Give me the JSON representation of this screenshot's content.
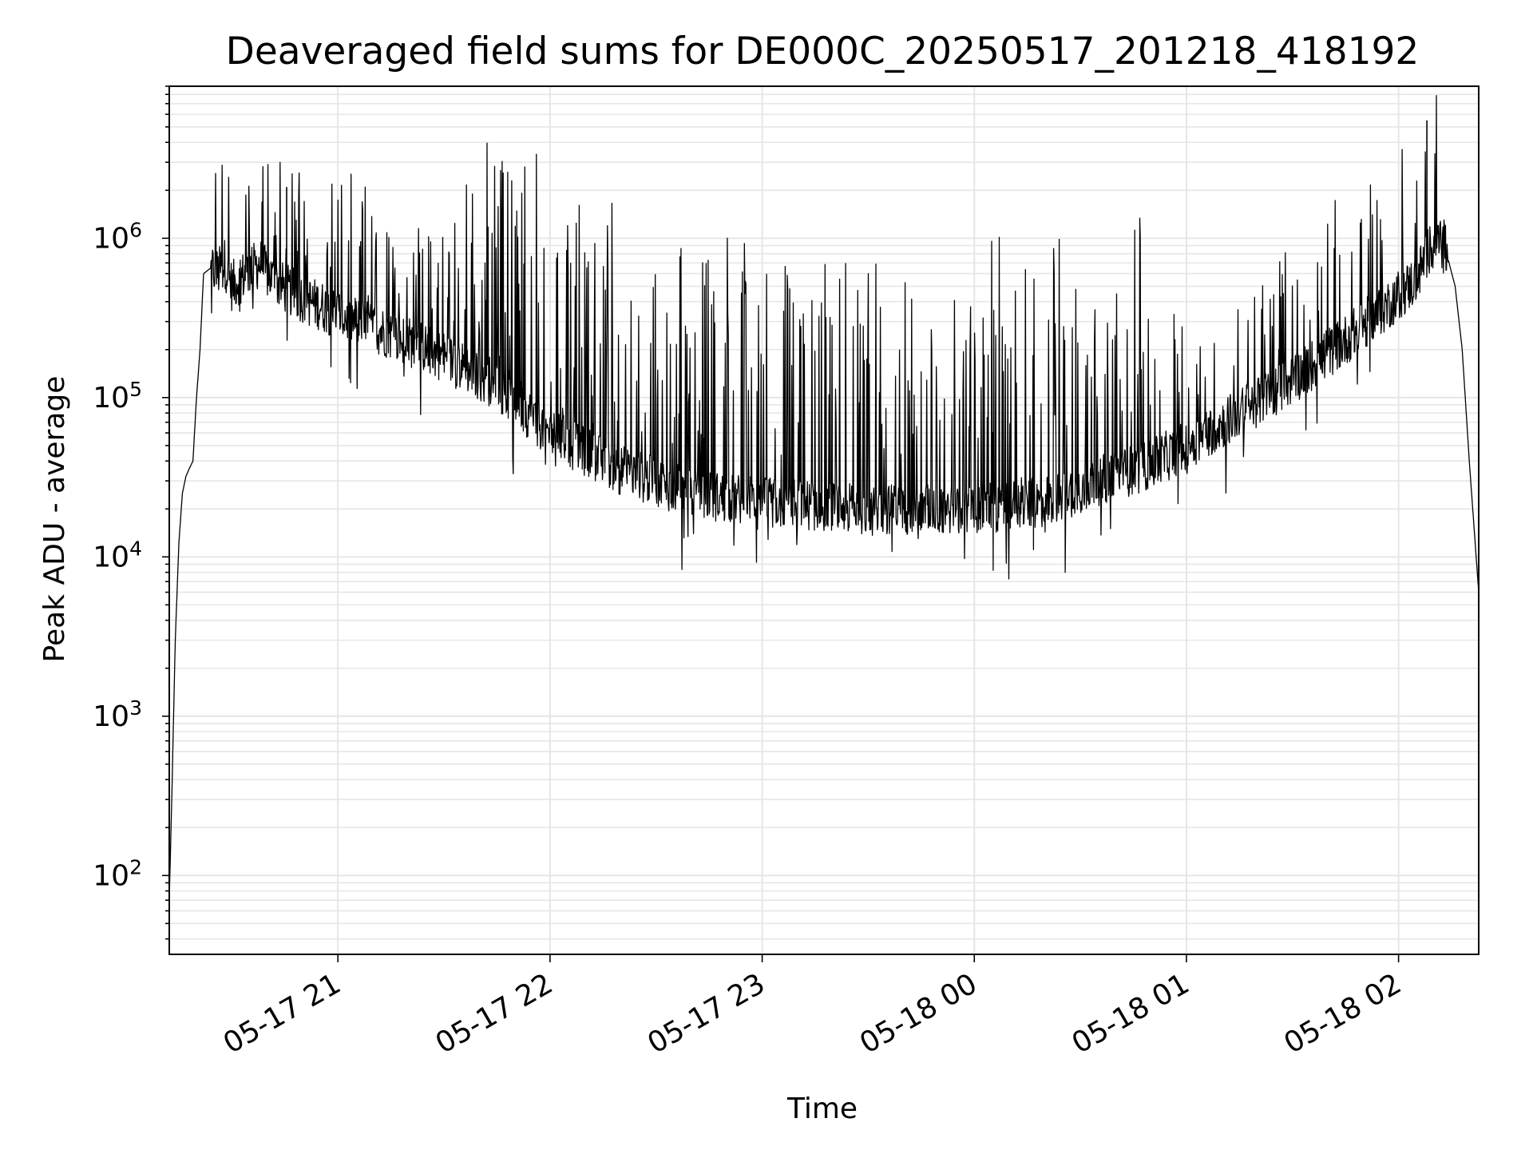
{
  "chart_data": {
    "type": "line",
    "title": "Deaveraged field sums for DE000C_20250517_201218_418192",
    "xlabel": "Time",
    "ylabel": "Peak ADU - average",
    "y_scale": "log",
    "ylim": [
      32,
      9000000
    ],
    "xlim": [
      "2025-05-17 20:12:18",
      "2025-05-18 02:22:40"
    ],
    "grid": true,
    "line_color": "#000000",
    "grid_color": "#e6e6e6",
    "x_ticks": [
      {
        "label": "05-17 21",
        "value": "2025-05-17 21:00:00"
      },
      {
        "label": "05-17 22",
        "value": "2025-05-17 22:00:00"
      },
      {
        "label": "05-17 23",
        "value": "2025-05-17 23:00:00"
      },
      {
        "label": "05-18 00",
        "value": "2025-05-18 00:00:00"
      },
      {
        "label": "05-18 01",
        "value": "2025-05-18 01:00:00"
      },
      {
        "label": "05-18 02",
        "value": "2025-05-18 02:00:00"
      }
    ],
    "y_ticks": [
      {
        "base": "10",
        "exp": "2",
        "value": 100
      },
      {
        "base": "10",
        "exp": "3",
        "value": 1000
      },
      {
        "base": "10",
        "exp": "4",
        "value": 10000
      },
      {
        "base": "10",
        "exp": "5",
        "value": 100000
      },
      {
        "base": "10",
        "exp": "6",
        "value": 1000000
      }
    ],
    "series": [
      {
        "x": [
          "2025-05-17 20:12:18",
          "2025-05-17 20:13:00",
          "2025-05-17 20:14:00",
          "2025-05-17 20:15:00",
          "2025-05-17 20:16:00",
          "2025-05-17 20:17:00",
          "2025-05-17 20:18:00",
          "2025-05-17 20:19:00",
          "2025-05-17 20:20:00",
          "2025-05-17 20:21:00",
          "2025-05-17 20:22:00",
          "2025-05-17 20:24:00",
          "2025-05-17 20:26:00",
          "2025-05-17 20:28:00",
          "2025-05-17 20:30:00",
          "2025-05-17 20:32:00",
          "2025-05-17 20:34:00",
          "2025-05-17 20:36:00",
          "2025-05-17 20:38:00",
          "2025-05-17 20:40:00",
          "2025-05-17 20:44:00",
          "2025-05-17 20:48:00",
          "2025-05-17 20:52:00",
          "2025-05-17 20:55:00",
          "2025-05-17 20:58:00",
          "2025-05-17 21:05:00",
          "2025-05-17 21:15:00",
          "2025-05-17 21:30:00",
          "2025-05-17 21:45:00",
          "2025-05-17 22:00:00",
          "2025-05-17 22:20:00",
          "2025-05-17 22:40:00",
          "2025-05-17 23:00:00",
          "2025-05-17 23:30:00",
          "2025-05-18 00:00:00",
          "2025-05-18 00:20:00",
          "2025-05-18 00:35:00",
          "2025-05-18 00:50:00",
          "2025-05-18 01:00:00",
          "2025-05-18 01:15:00",
          "2025-05-18 01:30:00",
          "2025-05-18 01:45:00",
          "2025-05-18 01:55:00",
          "2025-05-18 02:05:00",
          "2025-05-18 02:08:00",
          "2025-05-18 02:10:00",
          "2025-05-18 02:13:00",
          "2025-05-18 02:16:00",
          "2025-05-18 02:18:00",
          "2025-05-18 02:20:00",
          "2025-05-18 02:22:40"
        ],
        "values": [
          70,
          300,
          3000,
          12000,
          25000,
          32000,
          36000,
          40000,
          100000,
          200000,
          600000,
          650000,
          600000,
          700000,
          500000,
          550000,
          600000,
          650000,
          700000,
          600000,
          500000,
          450000,
          400000,
          380000,
          350000,
          300000,
          250000,
          180000,
          120000,
          60000,
          35000,
          25000,
          22000,
          20000,
          20000,
          22000,
          30000,
          38000,
          50000,
          80000,
          130000,
          230000,
          350000,
          550000,
          800000,
          950000,
          900000,
          500000,
          200000,
          40000,
          6000
        ]
      }
    ]
  }
}
